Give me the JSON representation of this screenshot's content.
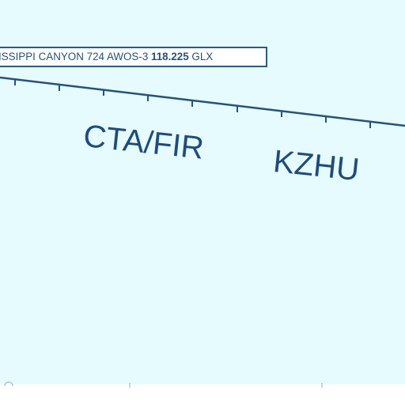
{
  "awos": {
    "name": "ISSIPPI CANYON 724 AWOS-3",
    "frequency": "118.225",
    "suffix": "GLX"
  },
  "boundary_labels": {
    "left": "CTA/FIR",
    "right": "KZHU"
  },
  "colors": {
    "background": "#e6fbfe",
    "boundary_line": "#23527f",
    "label_text": "#1d4b82",
    "box_border": "#2a5a86"
  }
}
